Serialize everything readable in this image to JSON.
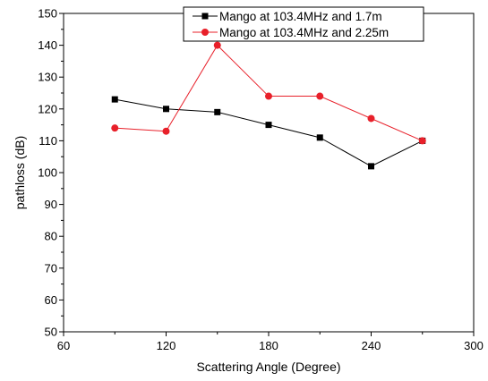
{
  "chart_data": {
    "type": "line",
    "xlabel": "Scattering Angle (Degree)",
    "ylabel": "pathloss (dB)",
    "xlim": [
      60,
      300
    ],
    "ylim": [
      50,
      150
    ],
    "xticks": [
      60,
      120,
      180,
      240,
      300
    ],
    "yticks": [
      50,
      60,
      70,
      80,
      90,
      100,
      110,
      120,
      130,
      140,
      150
    ],
    "grid": false,
    "legend_position": "top-right",
    "x": [
      90,
      120,
      150,
      180,
      210,
      240,
      270
    ],
    "series": [
      {
        "name": "Mango at 103.4MHz and 1.7m",
        "color": "#000000",
        "marker": "square",
        "values": [
          123,
          120,
          119,
          115,
          111,
          102,
          110
        ]
      },
      {
        "name": "Mango at 103.4MHz and 2.25m",
        "color": "#e8202a",
        "marker": "circle",
        "values": [
          114,
          113,
          140,
          124,
          124,
          117,
          110
        ]
      }
    ]
  }
}
